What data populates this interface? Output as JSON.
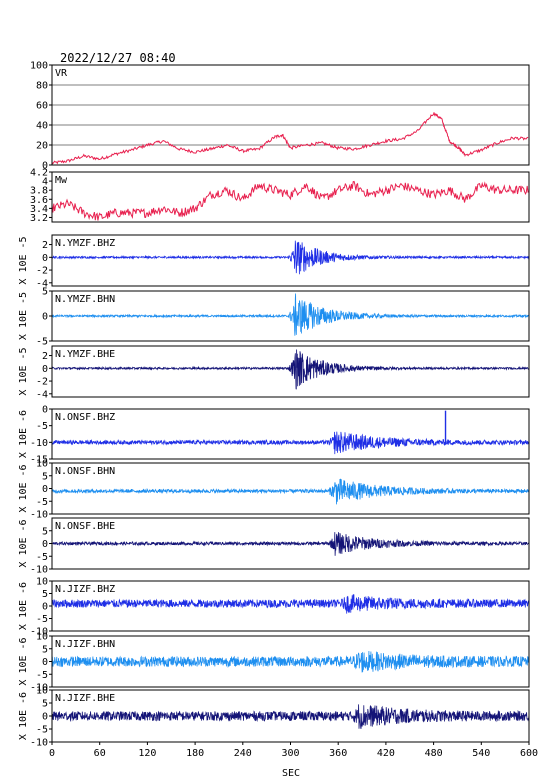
{
  "title": "2022/12/27 08:40",
  "chart_data": {
    "type": "line",
    "xlabel": "SEC",
    "xlim": [
      0,
      600
    ],
    "xticks": [
      0,
      60,
      120,
      180,
      240,
      300,
      360,
      420,
      480,
      540,
      600
    ],
    "panels": [
      {
        "label": "VR",
        "ylabel": "",
        "ylim": [
          0,
          100
        ],
        "yticks": [
          0,
          20,
          40,
          60,
          80,
          100
        ],
        "ytick_labels": [
          "0",
          "20",
          "40",
          "60",
          "80",
          "100"
        ],
        "grid": true,
        "color": "#e8214f",
        "kind": "step",
        "x": [
          0,
          20,
          40,
          60,
          80,
          100,
          120,
          140,
          160,
          180,
          200,
          220,
          240,
          260,
          280,
          290,
          300,
          320,
          340,
          360,
          380,
          400,
          420,
          440,
          460,
          480,
          490,
          500,
          510,
          520,
          540,
          560,
          580,
          600
        ],
        "y": [
          2,
          4,
          9,
          6,
          11,
          15,
          20,
          24,
          16,
          13,
          16,
          20,
          14,
          16,
          28,
          30,
          17,
          20,
          22,
          17,
          16,
          20,
          24,
          26,
          34,
          52,
          46,
          24,
          18,
          10,
          15,
          22,
          27,
          26
        ]
      },
      {
        "label": "Mw",
        "ylabel": "",
        "ylim": [
          3.1,
          4.2
        ],
        "yticks": [
          3.2,
          3.4,
          3.6,
          3.8,
          4.0,
          4.2
        ],
        "ytick_labels": [
          "3.2",
          "3.4",
          "3.6",
          "3.8",
          "4",
          "4.2"
        ],
        "grid": false,
        "color": "#e8214f",
        "kind": "step",
        "x": [
          0,
          20,
          40,
          60,
          80,
          100,
          120,
          140,
          160,
          180,
          200,
          220,
          240,
          260,
          280,
          300,
          320,
          340,
          360,
          380,
          400,
          420,
          440,
          460,
          480,
          500,
          520,
          540,
          560,
          580,
          600
        ],
        "y": [
          3.4,
          3.5,
          3.3,
          3.2,
          3.3,
          3.3,
          3.3,
          3.4,
          3.3,
          3.4,
          3.7,
          3.8,
          3.6,
          3.9,
          3.8,
          3.7,
          3.9,
          3.6,
          3.8,
          3.9,
          3.7,
          3.8,
          3.9,
          3.8,
          3.7,
          3.8,
          3.6,
          3.9,
          3.8,
          3.8,
          3.8
        ]
      },
      {
        "label": "N.YMZF.BHZ",
        "ylabel": "X 10E -5",
        "ylim": [
          -4.5,
          3.5
        ],
        "yticks": [
          -4,
          -2,
          0,
          2
        ],
        "ytick_labels": [
          "-4",
          "-2",
          "0",
          "2"
        ],
        "grid": false,
        "color": "#1f2fe6",
        "kind": "wave",
        "baseline": 0,
        "noise": 0.15,
        "events": [
          {
            "t": 305,
            "amp": 3.2,
            "dur": 30
          }
        ]
      },
      {
        "label": "N.YMZF.BHN",
        "ylabel": "X 10E -5",
        "ylim": [
          -5,
          5
        ],
        "yticks": [
          -5,
          0,
          5
        ],
        "ytick_labels": [
          "-5",
          "0",
          "5"
        ],
        "grid": false,
        "color": "#1e8ff0",
        "kind": "wave",
        "baseline": 0,
        "noise": 0.2,
        "events": [
          {
            "t": 305,
            "amp": 4.5,
            "dur": 35
          }
        ]
      },
      {
        "label": "N.YMZF.BHE",
        "ylabel": "X 10E -5",
        "ylim": [
          -4.5,
          3.5
        ],
        "yticks": [
          -4,
          -2,
          0,
          2
        ],
        "ytick_labels": [
          "-4",
          "-2",
          "0",
          "2"
        ],
        "grid": false,
        "color": "#141477",
        "kind": "wave",
        "baseline": 0,
        "noise": 0.15,
        "events": [
          {
            "t": 305,
            "amp": 3.4,
            "dur": 32
          }
        ]
      },
      {
        "label": "N.ONSF.BHZ",
        "ylabel": "X 10E -6",
        "ylim": [
          -15,
          0
        ],
        "yticks": [
          -15,
          -10,
          -5,
          0
        ],
        "ytick_labels": [
          "-15",
          "-10",
          "-5",
          "0"
        ],
        "grid": false,
        "color": "#1f2fe6",
        "kind": "wave",
        "baseline": -10,
        "noise": 0.6,
        "events": [
          {
            "t": 355,
            "amp": 3.2,
            "dur": 55
          }
        ],
        "spike": {
          "t": 495,
          "value": -0.5
        }
      },
      {
        "label": "N.ONSF.BHN",
        "ylabel": "X 10E -6",
        "ylim": [
          -10,
          10
        ],
        "yticks": [
          -10,
          -5,
          0,
          5,
          10
        ],
        "ytick_labels": [
          "-10",
          "-5",
          "0",
          "5",
          "10"
        ],
        "grid": false,
        "color": "#1e8ff0",
        "kind": "wave",
        "baseline": -1,
        "noise": 0.7,
        "events": [
          {
            "t": 355,
            "amp": 5,
            "dur": 50
          }
        ]
      },
      {
        "label": "N.ONSF.BHE",
        "ylabel": "X 10E -6",
        "ylim": [
          -10,
          10
        ],
        "yticks": [
          -10,
          -5,
          0,
          5
        ],
        "ytick_labels": [
          "-10",
          "-5",
          "0",
          "5"
        ],
        "grid": false,
        "color": "#141477",
        "kind": "wave",
        "baseline": 0,
        "noise": 0.6,
        "events": [
          {
            "t": 355,
            "amp": 4.5,
            "dur": 45
          }
        ]
      },
      {
        "label": "N.JIZF.BHZ",
        "ylabel": "X 10E -6",
        "ylim": [
          -10,
          10
        ],
        "yticks": [
          -10,
          -5,
          0,
          5,
          10
        ],
        "ytick_labels": [
          "-10",
          "-5",
          "0",
          "5",
          "10"
        ],
        "grid": false,
        "color": "#1f2fe6",
        "kind": "wave",
        "baseline": 1,
        "noise": 1.6,
        "events": [
          {
            "t": 370,
            "amp": 2.5,
            "dur": 50
          }
        ]
      },
      {
        "label": "N.JIZF.BHN",
        "ylabel": "X 10E -6",
        "ylim": [
          -10,
          10
        ],
        "yticks": [
          -10,
          -5,
          0,
          5,
          10
        ],
        "ytick_labels": [
          "-10",
          "-5",
          "0",
          "5",
          "10"
        ],
        "grid": false,
        "color": "#1e8ff0",
        "kind": "wave",
        "baseline": 0,
        "noise": 2.0,
        "events": [
          {
            "t": 385,
            "amp": 3,
            "dur": 50
          }
        ]
      },
      {
        "label": "N.JIZF.BHE",
        "ylabel": "X 10E -6",
        "ylim": [
          -10,
          10
        ],
        "yticks": [
          -10,
          -5,
          0,
          5,
          10
        ],
        "ytick_labels": [
          "-10",
          "-5",
          "0",
          "5",
          "10"
        ],
        "grid": false,
        "color": "#141477",
        "kind": "wave",
        "baseline": 0,
        "noise": 1.8,
        "events": [
          {
            "t": 385,
            "amp": 3.5,
            "dur": 50
          }
        ]
      }
    ]
  }
}
